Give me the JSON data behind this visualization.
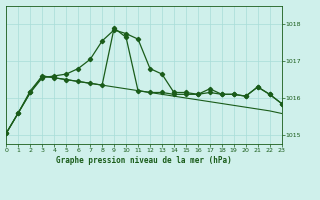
{
  "title": "Graphe pression niveau de la mer (hPa)",
  "background_color": "#cff0eb",
  "line_color": "#1a5c1a",
  "grid_color": "#a8ddd8",
  "ylim": [
    1014.75,
    1018.5
  ],
  "xlim": [
    0,
    23
  ],
  "yticks": [
    1015,
    1016,
    1017,
    1018
  ],
  "xticks": [
    0,
    1,
    2,
    3,
    4,
    5,
    6,
    7,
    8,
    9,
    10,
    11,
    12,
    13,
    14,
    15,
    16,
    17,
    18,
    19,
    20,
    21,
    22,
    23
  ],
  "series1_x": [
    0,
    1,
    2,
    3,
    4,
    5,
    6,
    7,
    8,
    9,
    10,
    11,
    12,
    13,
    14,
    15,
    16,
    17,
    18,
    19,
    20,
    21,
    22,
    23
  ],
  "series1_y": [
    1015.05,
    1015.6,
    1016.15,
    1016.55,
    1016.6,
    1016.65,
    1016.8,
    1017.05,
    1017.55,
    1017.85,
    1017.75,
    1017.6,
    1016.8,
    1016.65,
    1016.15,
    1016.15,
    1016.1,
    1016.25,
    1016.1,
    1016.1,
    1016.05,
    1016.3,
    1016.1,
    1015.85
  ],
  "series2_x": [
    0,
    1,
    2,
    3,
    4,
    5,
    6,
    7,
    8,
    9,
    10,
    11,
    12,
    13,
    14,
    15,
    16,
    17,
    18,
    19,
    20,
    21,
    22,
    23
  ],
  "series2_y": [
    1015.05,
    1015.6,
    1016.15,
    1016.6,
    1016.55,
    1016.5,
    1016.45,
    1016.4,
    1016.35,
    1017.9,
    1017.65,
    1016.2,
    1016.15,
    1016.15,
    1016.1,
    1016.1,
    1016.1,
    1016.15,
    1016.1,
    1016.1,
    1016.05,
    1016.3,
    1016.1,
    1015.85
  ],
  "series3_x": [
    0,
    1,
    2,
    3,
    4,
    5,
    6,
    7,
    8,
    9,
    10,
    11,
    12,
    13,
    14,
    15,
    16,
    17,
    18,
    19,
    20,
    21,
    22,
    23
  ],
  "series3_y": [
    1015.05,
    1015.6,
    1016.2,
    1016.6,
    1016.55,
    1016.5,
    1016.45,
    1016.4,
    1016.35,
    1016.3,
    1016.25,
    1016.2,
    1016.15,
    1016.1,
    1016.05,
    1016.0,
    1015.95,
    1015.9,
    1015.85,
    1015.8,
    1015.75,
    1015.7,
    1015.65,
    1015.58
  ]
}
